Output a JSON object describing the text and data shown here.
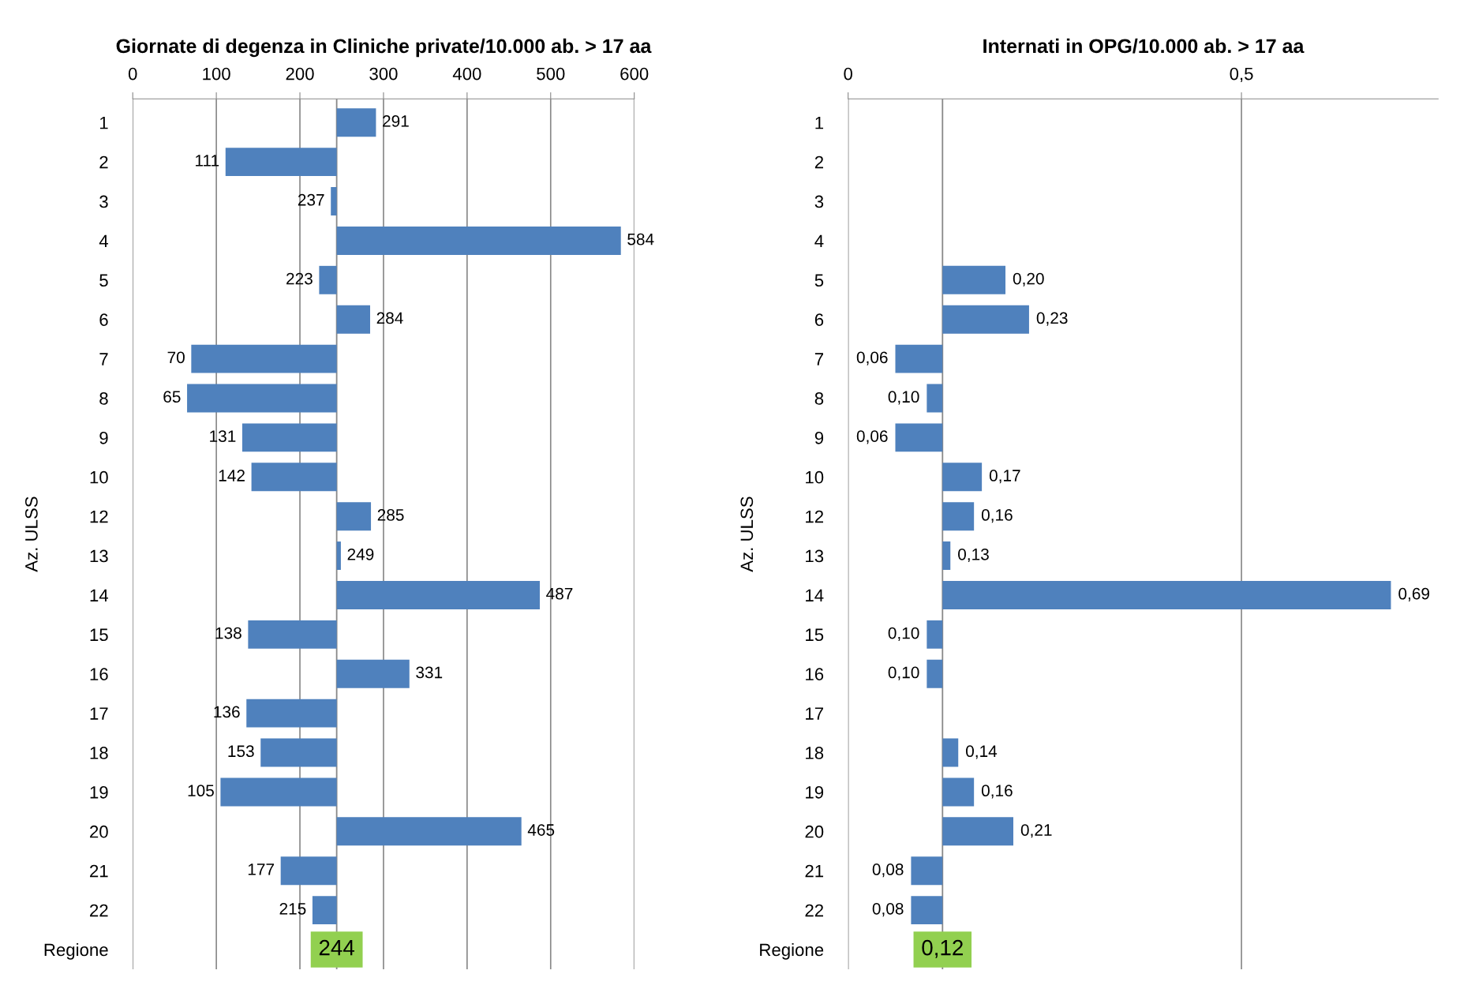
{
  "chart_data": [
    {
      "type": "bar",
      "orientation": "horizontal",
      "title": "Giornate di degenza in Cliniche private/10.000 ab. > 17 aa",
      "ylabel": "Az. ULSS",
      "categories": [
        "1",
        "2",
        "3",
        "4",
        "5",
        "6",
        "7",
        "8",
        "9",
        "10",
        "12",
        "13",
        "14",
        "15",
        "16",
        "17",
        "18",
        "19",
        "20",
        "21",
        "22",
        "Regione"
      ],
      "base": [
        244,
        244,
        244,
        244,
        244,
        244,
        244,
        244,
        244,
        244,
        244,
        244,
        244,
        244,
        244,
        244,
        244,
        244,
        244,
        244,
        244,
        null
      ],
      "values": [
        47,
        -133,
        -7,
        340,
        -21,
        40,
        -174,
        -179,
        -113,
        -102,
        41,
        5,
        243,
        -106,
        87,
        -108,
        -91,
        -139,
        221,
        -67,
        -29,
        null
      ],
      "value_labels": [
        "291",
        "111",
        "237",
        "584",
        "223",
        "284",
        "70",
        "65",
        "131",
        "142",
        "285",
        "249",
        "487",
        "138",
        "331",
        "136",
        "153",
        "105",
        "465",
        "177",
        "215",
        null
      ],
      "annotations": [
        {
          "text": "244",
          "x": 244,
          "y": "Regione"
        }
      ],
      "colors": [
        "#4f81bd",
        "#4f81bd",
        "#4f81bd",
        "#4f81bd",
        "#4f81bd",
        "#4f81bd",
        "#4f81bd",
        "#4f81bd",
        "#4f81bd",
        "#4f81bd",
        "#4f81bd",
        "#4f81bd",
        "#4f81bd",
        "#4f81bd",
        "#4f81bd",
        "#4f81bd",
        "#4f81bd",
        "#4f81bd",
        "#4f81bd",
        "#4f81bd",
        "#4f81bd",
        "#92d050"
      ],
      "xlim": [
        0,
        600
      ],
      "xticks": [
        0,
        100,
        200,
        300,
        400,
        500,
        600
      ],
      "grid": "x",
      "ref_lines": [
        {
          "axis": "x",
          "value": 244,
          "label": null
        }
      ]
    },
    {
      "type": "bar",
      "orientation": "horizontal",
      "title": "Internati in OPG/10.000 ab. > 17 aa",
      "ylabel": "Az. ULSS",
      "categories": [
        "1",
        "2",
        "3",
        "4",
        "5",
        "6",
        "7",
        "8",
        "9",
        "10",
        "12",
        "13",
        "14",
        "15",
        "16",
        "17",
        "18",
        "19",
        "20",
        "21",
        "22",
        "Regione"
      ],
      "base": [
        null,
        null,
        null,
        null,
        0.12,
        0.12,
        0.12,
        0.12,
        0.12,
        0.12,
        0.12,
        0.12,
        0.12,
        0.12,
        0.12,
        null,
        0.12,
        0.12,
        0.12,
        0.12,
        0.12,
        null
      ],
      "values": [
        null,
        null,
        null,
        null,
        0.08,
        0.11,
        -0.06,
        -0.02,
        -0.06,
        0.05,
        0.04,
        0.01,
        0.57,
        -0.02,
        -0.02,
        null,
        0.02,
        0.04,
        0.09,
        -0.04,
        -0.04,
        null
      ],
      "value_labels": [
        null,
        null,
        null,
        null,
        "0,20",
        "0,23",
        "0,06",
        "0,10",
        "0,06",
        "0,17",
        "0,16",
        "0,13",
        "0,69",
        "0,10",
        "0,10",
        null,
        "0,14",
        "0,16",
        "0,21",
        "0,08",
        "0,08",
        null
      ],
      "annotations": [
        {
          "text": "0,12",
          "x": 0.12,
          "y": "Regione"
        }
      ],
      "colors": [
        "#4f81bd",
        "#4f81bd",
        "#4f81bd",
        "#4f81bd",
        "#4f81bd",
        "#4f81bd",
        "#4f81bd",
        "#4f81bd",
        "#4f81bd",
        "#4f81bd",
        "#4f81bd",
        "#4f81bd",
        "#4f81bd",
        "#4f81bd",
        "#4f81bd",
        "#4f81bd",
        "#4f81bd",
        "#4f81bd",
        "#4f81bd",
        "#4f81bd",
        "#4f81bd",
        "#92d050"
      ],
      "xlim": [
        0,
        0.75
      ],
      "xticks": [
        0,
        {
          "value": 0.5,
          "label": "0,5"
        }
      ],
      "grid": "x",
      "ref_lines": [
        {
          "axis": "x",
          "value": 0.12,
          "label": null
        }
      ]
    }
  ]
}
